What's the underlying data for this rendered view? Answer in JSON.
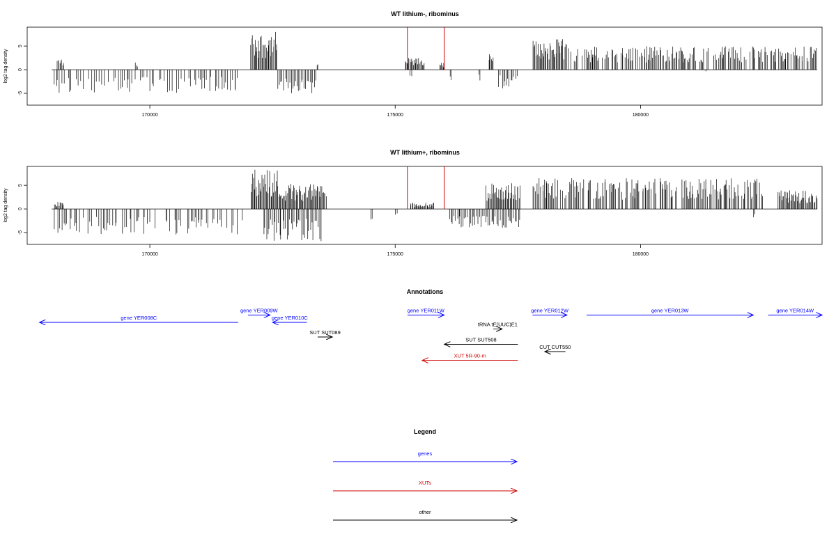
{
  "chart_data": [
    {
      "type": "bar",
      "title": "WT lithium-, ribominus",
      "ylabel": "log2 tag density",
      "xlim": [
        167500,
        183700
      ],
      "ylim": [
        -7.5,
        9
      ],
      "xticks": [
        170000,
        175000,
        180000
      ],
      "yticks": [
        -5,
        0,
        5
      ],
      "ytick_labels": [
        "-5",
        "0",
        "5"
      ],
      "grid": false,
      "highlight_color": "#cc0000",
      "plus_strand_regions": [
        {
          "start": 168100,
          "end": 168250,
          "max": 2.5
        },
        {
          "start": 169700,
          "end": 169750,
          "max": 1.6
        },
        {
          "start": 172050,
          "end": 172600,
          "max": 8
        },
        {
          "start": 173400,
          "end": 173430,
          "max": 1.2
        },
        {
          "start": 175200,
          "end": 175600,
          "max": 2.5
        },
        {
          "start": 175900,
          "end": 176000,
          "max": 1.5
        },
        {
          "start": 176900,
          "end": 177000,
          "max": 3.5
        },
        {
          "start": 177800,
          "end": 178500,
          "max": 6.5
        },
        {
          "start": 178500,
          "end": 183600,
          "max": 5
        }
      ],
      "minus_strand_regions": [
        {
          "start": 168050,
          "end": 171800,
          "min": -5
        },
        {
          "start": 172600,
          "end": 173400,
          "min": -5
        },
        {
          "start": 175300,
          "end": 175350,
          "min": -2.5
        },
        {
          "start": 176100,
          "end": 176150,
          "min": -2.5
        },
        {
          "start": 176700,
          "end": 176750,
          "min": -2.5
        },
        {
          "start": 177100,
          "end": 177500,
          "min": -4
        },
        {
          "start": 181300,
          "end": 181350,
          "min": -0.5
        }
      ],
      "highlight_bars": [
        {
          "x": 175250,
          "value": 9
        },
        {
          "x": 176000,
          "value": 9
        }
      ]
    },
    {
      "type": "bar",
      "title": "WT lithium+, ribominus",
      "ylabel": "log2 tag density",
      "xlim": [
        167500,
        183700
      ],
      "ylim": [
        -7.5,
        9
      ],
      "xticks": [
        170000,
        175000,
        180000
      ],
      "yticks": [
        -5,
        0,
        5
      ],
      "ytick_labels": [
        "-5",
        "0",
        "5"
      ],
      "grid": false,
      "highlight_color": "#cc0000",
      "plus_strand_regions": [
        {
          "start": 168050,
          "end": 168250,
          "max": 1.5
        },
        {
          "start": 172050,
          "end": 172600,
          "max": 8.5
        },
        {
          "start": 172600,
          "end": 173600,
          "max": 5.5
        },
        {
          "start": 175300,
          "end": 175800,
          "max": 1.3
        },
        {
          "start": 176850,
          "end": 177550,
          "max": 5.5
        },
        {
          "start": 177800,
          "end": 182500,
          "max": 6.5
        },
        {
          "start": 182800,
          "end": 183600,
          "max": 4
        }
      ],
      "minus_strand_regions": [
        {
          "start": 168050,
          "end": 171900,
          "min": -5.5
        },
        {
          "start": 172300,
          "end": 173500,
          "min": -7
        },
        {
          "start": 174500,
          "end": 174550,
          "min": -2.5
        },
        {
          "start": 175000,
          "end": 175050,
          "min": -1.5
        },
        {
          "start": 176100,
          "end": 177550,
          "min": -4
        },
        {
          "start": 182300,
          "end": 182350,
          "min": -2.5
        }
      ],
      "highlight_bars": [
        {
          "x": 175250,
          "value": 9
        },
        {
          "x": 176000,
          "value": 9
        }
      ]
    }
  ],
  "annotations": {
    "title": "Annotations",
    "items": [
      {
        "label": "gene YER008C",
        "start": 171800,
        "end": 167750,
        "row": 2,
        "color": "#0000ff"
      },
      {
        "label": "gene YER009W",
        "start": 172000,
        "end": 172450,
        "row": 1,
        "color": "#0000ff"
      },
      {
        "label": "gene YER010C",
        "start": 173200,
        "end": 172500,
        "row": 2,
        "color": "#0000ff"
      },
      {
        "label": "gene YER011W",
        "start": 175250,
        "end": 176000,
        "row": 1,
        "color": "#0000ff"
      },
      {
        "label": "gene YER012W",
        "start": 177800,
        "end": 178500,
        "row": 1,
        "color": "#0000ff"
      },
      {
        "label": "gene YER013W",
        "start": 178900,
        "end": 182300,
        "row": 1,
        "color": "#0000ff"
      },
      {
        "label": "gene YER014W",
        "start": 182600,
        "end": 183700,
        "row": 1,
        "color": "#0000ff"
      },
      {
        "label": "tRNA tE(UUC)E1",
        "start": 177000,
        "end": 177180,
        "row": 2.9,
        "color": "#000000"
      },
      {
        "label": "SUT SUT089",
        "start": 173420,
        "end": 173720,
        "row": 4,
        "color": "#000000"
      },
      {
        "label": "SUT SUT508",
        "start": 177500,
        "end": 176000,
        "row": 5,
        "color": "#000000"
      },
      {
        "label": "CUT CUT550",
        "start": 178470,
        "end": 178050,
        "row": 6,
        "color": "#000000"
      },
      {
        "label": "XUT 5R-90-m",
        "start": 177500,
        "end": 175550,
        "row": 7.2,
        "color": "#cc0000"
      }
    ]
  },
  "legend": {
    "title": "Legend",
    "items": [
      {
        "label": "genes",
        "color": "#0000ff"
      },
      {
        "label": "XUTs",
        "color": "#cc0000"
      },
      {
        "label": "other",
        "color": "#000000"
      }
    ]
  }
}
